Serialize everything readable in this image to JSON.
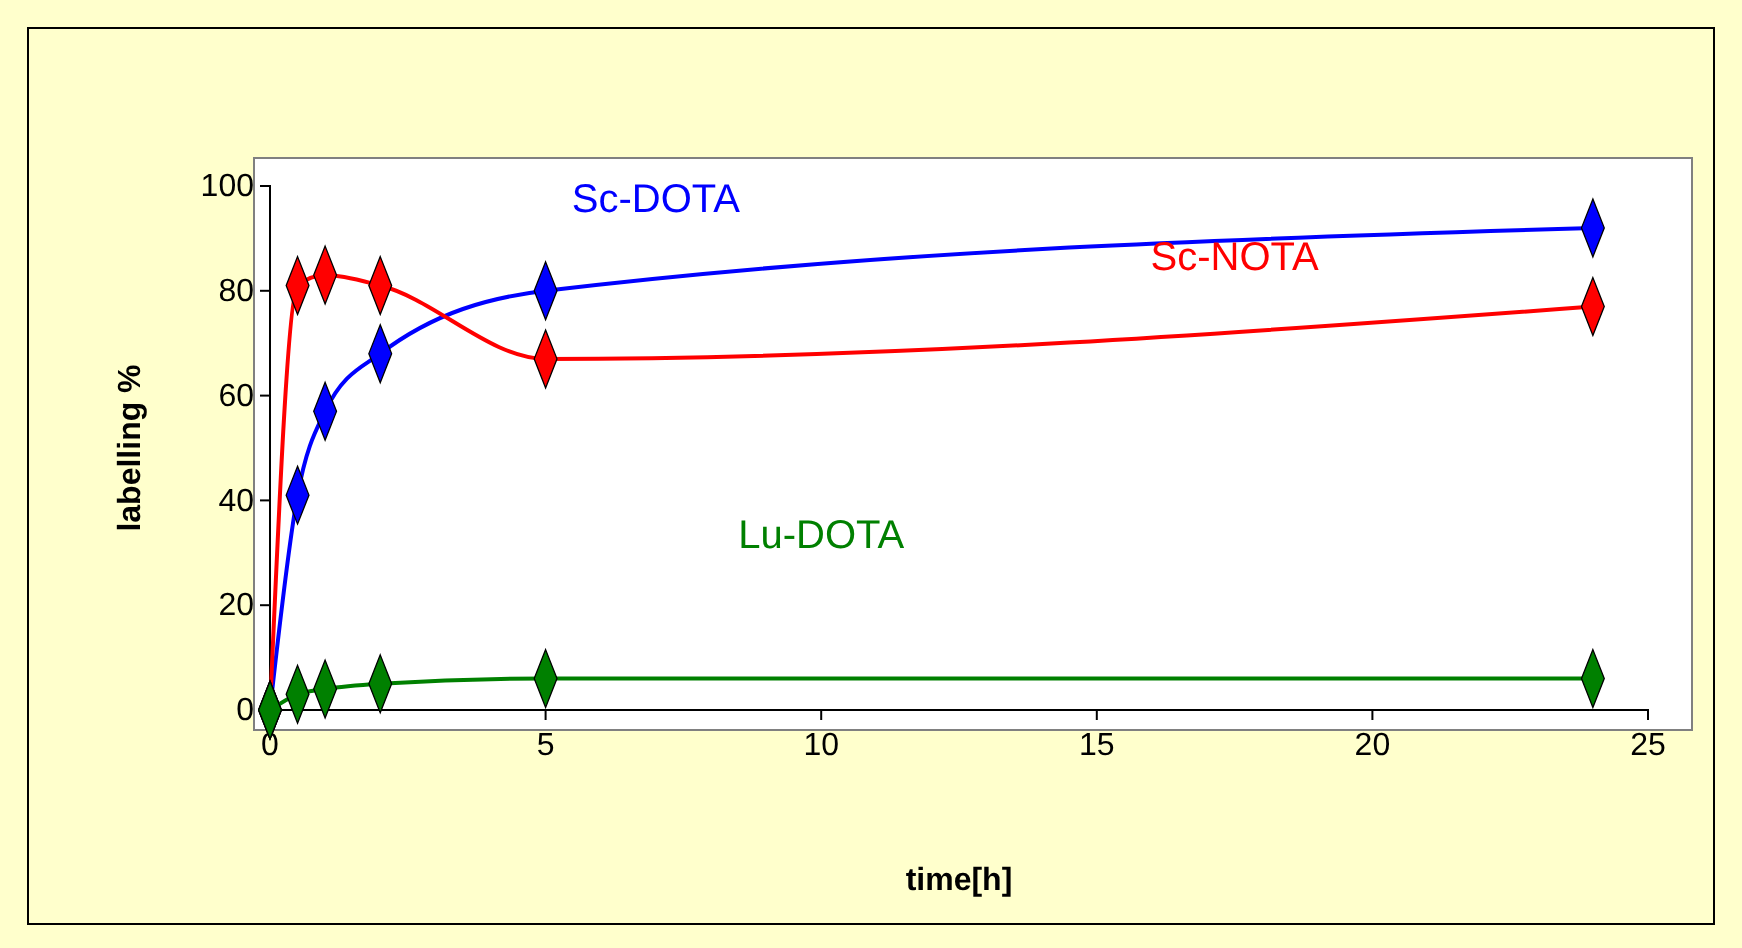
{
  "chart_data": {
    "type": "line",
    "xlabel": "time[h]",
    "ylabel": "labelling %",
    "xlim": [
      0,
      25
    ],
    "ylim": [
      0,
      100
    ],
    "xticks": [
      0,
      5,
      10,
      15,
      20,
      25
    ],
    "yticks": [
      0,
      20,
      40,
      60,
      80,
      100
    ],
    "grid": false,
    "marker": "diamond",
    "line_style": "solid",
    "series": [
      {
        "name": "Sc-DOTA",
        "color": "#0000ff",
        "x": [
          0,
          0.5,
          1,
          2,
          5,
          24
        ],
        "values": [
          0,
          41,
          57,
          68,
          80,
          92
        ]
      },
      {
        "name": "Sc-NOTA",
        "color": "#ff0000",
        "x": [
          0,
          0.5,
          1,
          2,
          5,
          24
        ],
        "values": [
          0,
          81,
          83,
          81,
          67,
          77
        ]
      },
      {
        "name": "Lu-DOTA",
        "color": "#008000",
        "x": [
          0,
          0.5,
          1,
          2,
          5,
          24
        ],
        "values": [
          0,
          3,
          4,
          5,
          6,
          6
        ]
      }
    ]
  }
}
